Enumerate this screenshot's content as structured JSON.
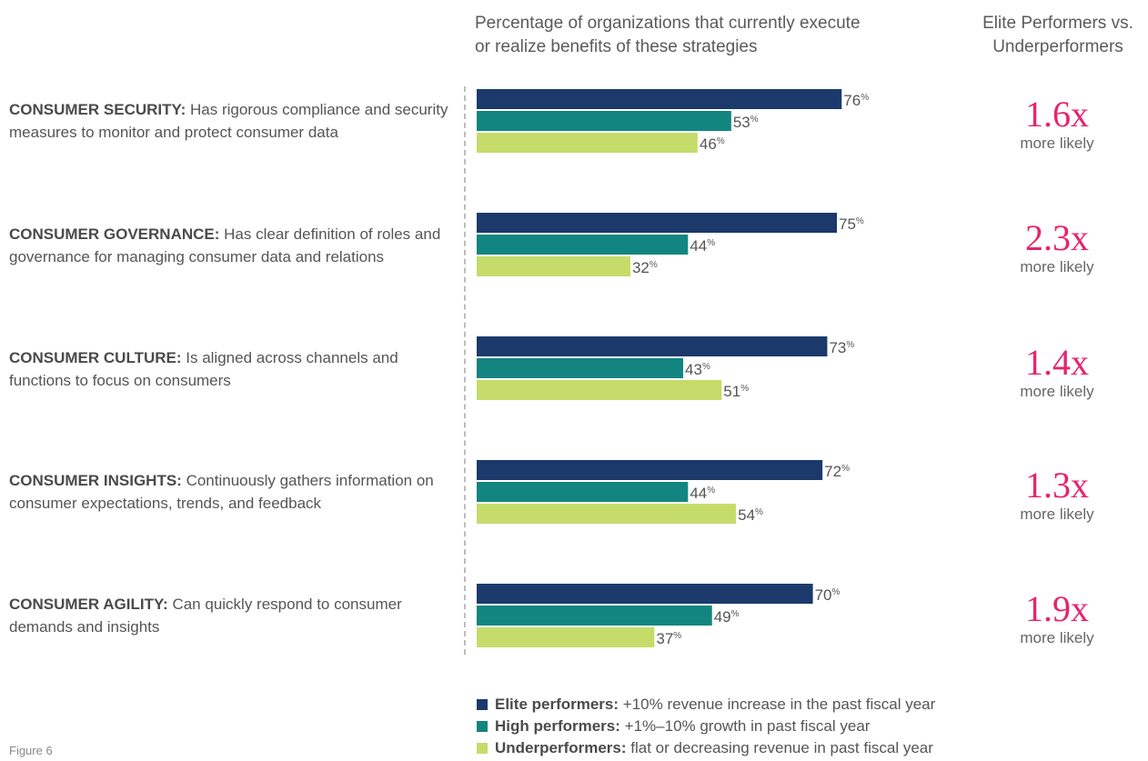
{
  "header": {
    "main_line1": "Percentage of organizations that currently execute",
    "main_line2": "or realize benefits of these strategies",
    "right_line1": "Elite Performers vs.",
    "right_line2": "Underperformers"
  },
  "rows": [
    {
      "title": "CONSUMER SECURITY:",
      "desc": "Has rigorous compliance and security measures to monitor and protect consumer data",
      "ratio": "1.6x",
      "ratio_note": "more likely"
    },
    {
      "title": "CONSUMER GOVERNANCE:",
      "desc": "Has clear definition of roles and governance for managing consumer data and relations",
      "ratio": "2.3x",
      "ratio_note": "more likely"
    },
    {
      "title": "CONSUMER CULTURE:",
      "desc": "Is aligned across channels and functions to focus on consumers",
      "ratio": "1.4x",
      "ratio_note": "more likely"
    },
    {
      "title": "CONSUMER INSIGHTS:",
      "desc": "Continuously gathers information on consumer expectations, trends, and feedback",
      "ratio": "1.3x",
      "ratio_note": "more likely"
    },
    {
      "title": "CONSUMER AGILITY:",
      "desc": "Can quickly respond to consumer demands and insights",
      "ratio": "1.9x",
      "ratio_note": "more likely"
    }
  ],
  "legend": [
    {
      "bold": "Elite performers:",
      "text": "+10% revenue increase in the past fiscal year",
      "color": "#1b3a6b"
    },
    {
      "bold": "High performers:",
      "text": "+1%–10% growth in past fiscal year",
      "color": "#128581"
    },
    {
      "bold": "Underperformers:",
      "text": "flat or decreasing revenue in past fiscal year",
      "color": "#c5dc6a"
    }
  ],
  "figure_label": "Figure 6",
  "chart_data": {
    "type": "bar",
    "orientation": "horizontal",
    "categories": [
      "CONSUMER SECURITY",
      "CONSUMER GOVERNANCE",
      "CONSUMER CULTURE",
      "CONSUMER INSIGHTS",
      "CONSUMER AGILITY"
    ],
    "series": [
      {
        "name": "Elite performers",
        "values": [
          76,
          75,
          73,
          72,
          70
        ],
        "color": "#1b3a6b"
      },
      {
        "name": "High performers",
        "values": [
          53,
          44,
          43,
          44,
          49
        ],
        "color": "#128581"
      },
      {
        "name": "Underperformers",
        "values": [
          46,
          32,
          51,
          54,
          37
        ],
        "color": "#c5dc6a"
      }
    ],
    "value_suffix": "%",
    "xlim": [
      0,
      100
    ]
  }
}
